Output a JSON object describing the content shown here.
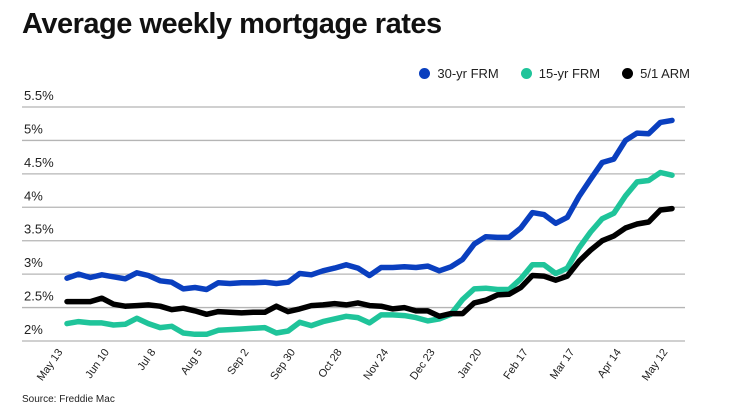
{
  "chart_data": {
    "type": "line",
    "title": "Average weekly mortgage rates",
    "source": "Source: Freddie Mac",
    "xlabel": "",
    "ylabel": "",
    "ylim": [
      2,
      5.5
    ],
    "y_ticks": [
      "2%",
      "2.5%",
      "3%",
      "3.5%",
      "4%",
      "4.5%",
      "5%",
      "5.5%"
    ],
    "y_tick_values": [
      2,
      2.5,
      3,
      3.5,
      4,
      4.5,
      5,
      5.5
    ],
    "x_tick_labels": [
      "May 13",
      "Jun 10",
      "Jul 8",
      "Aug 5",
      "Sep 2",
      "Sep 30",
      "Oct 28",
      "Nov 24",
      "Dec 23",
      "Jan 20",
      "Feb 17",
      "Mar 17",
      "Apr 14",
      "May 12"
    ],
    "x_tick_indices": [
      0,
      4,
      8,
      12,
      16,
      20,
      24,
      28,
      32,
      36,
      40,
      44,
      48,
      52
    ],
    "grid": true,
    "legend_position": "top-right",
    "series": [
      {
        "name": "30-yr FRM",
        "color": "#0a3fbf",
        "values": [
          2.94,
          3.0,
          2.95,
          2.99,
          2.96,
          2.93,
          3.02,
          2.98,
          2.9,
          2.88,
          2.78,
          2.8,
          2.77,
          2.87,
          2.86,
          2.87,
          2.87,
          2.88,
          2.86,
          2.88,
          3.01,
          2.99,
          3.05,
          3.09,
          3.14,
          3.09,
          2.98,
          3.1,
          3.1,
          3.11,
          3.1,
          3.12,
          3.05,
          3.11,
          3.22,
          3.45,
          3.56,
          3.55,
          3.55,
          3.69,
          3.92,
          3.89,
          3.76,
          3.85,
          4.16,
          4.42,
          4.67,
          4.72,
          5.0,
          5.11,
          5.1,
          5.27,
          5.3
        ]
      },
      {
        "name": "15-yr FRM",
        "color": "#1fc49a",
        "values": [
          2.26,
          2.29,
          2.27,
          2.27,
          2.24,
          2.25,
          2.34,
          2.26,
          2.2,
          2.22,
          2.12,
          2.1,
          2.1,
          2.16,
          2.17,
          2.18,
          2.19,
          2.2,
          2.12,
          2.15,
          2.28,
          2.23,
          2.29,
          2.33,
          2.37,
          2.35,
          2.27,
          2.39,
          2.39,
          2.38,
          2.35,
          2.3,
          2.33,
          2.4,
          2.62,
          2.78,
          2.79,
          2.77,
          2.77,
          2.93,
          3.14,
          3.14,
          3.01,
          3.09,
          3.39,
          3.63,
          3.83,
          3.91,
          4.17,
          4.38,
          4.4,
          4.52,
          4.48
        ]
      },
      {
        "name": "5/1 ARM",
        "color": "#000000",
        "values": [
          2.59,
          2.59,
          2.59,
          2.64,
          2.55,
          2.52,
          2.53,
          2.54,
          2.52,
          2.47,
          2.49,
          2.45,
          2.4,
          2.44,
          2.43,
          2.42,
          2.43,
          2.43,
          2.52,
          2.44,
          2.48,
          2.53,
          2.54,
          2.56,
          2.54,
          2.57,
          2.53,
          2.52,
          2.48,
          2.5,
          2.45,
          2.45,
          2.37,
          2.41,
          2.41,
          2.57,
          2.61,
          2.69,
          2.7,
          2.8,
          2.98,
          2.97,
          2.91,
          2.97,
          3.19,
          3.36,
          3.5,
          3.57,
          3.69,
          3.75,
          3.78,
          3.96,
          3.98
        ]
      }
    ]
  }
}
